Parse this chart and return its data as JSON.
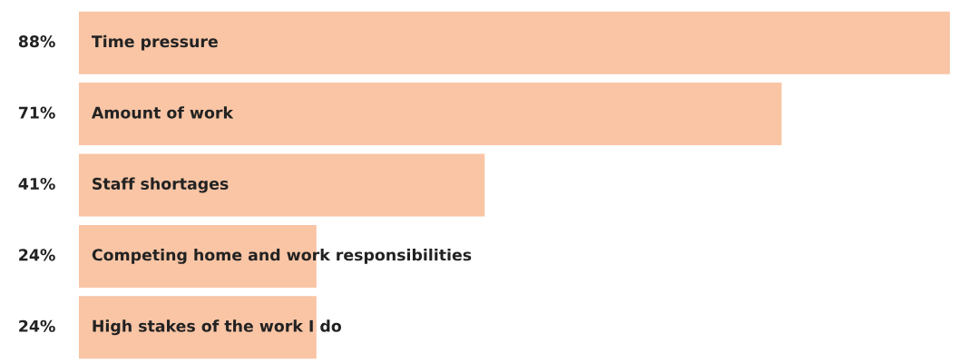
{
  "chart_data": {
    "type": "bar",
    "orientation": "horizontal",
    "categories": [
      "Time pressure",
      "Amount of work",
      "Staff shortages",
      "Competing home and work responsibilities",
      "High stakes of the work I do"
    ],
    "values": [
      88,
      71,
      41,
      24,
      24
    ],
    "value_labels": [
      "88%",
      "71%",
      "41%",
      "24%",
      "24%"
    ],
    "color": "#f9c5a5",
    "tick_labels": false
  }
}
